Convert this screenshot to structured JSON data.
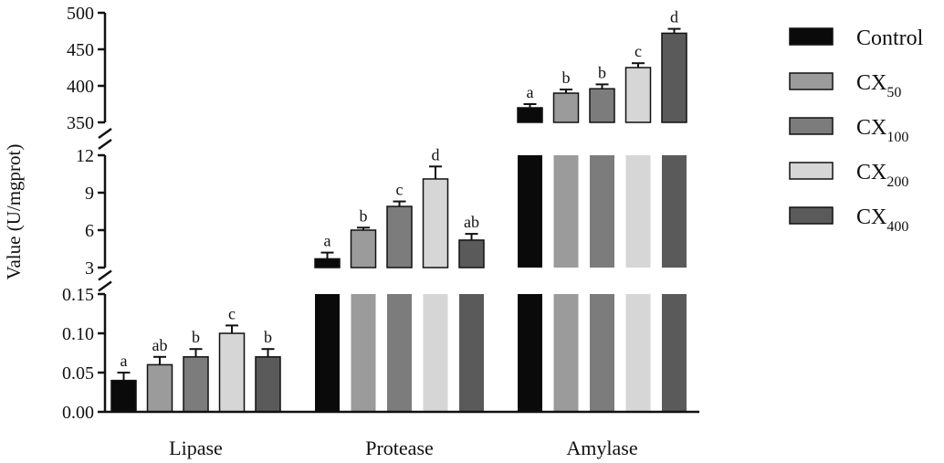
{
  "chart_data": {
    "type": "bar",
    "ylabel": "Value (U/mgprot)",
    "categories": [
      "Lipase",
      "Protease",
      "Amylase"
    ],
    "series": [
      {
        "name": "Control",
        "sub": "",
        "color": "#0a0a0a",
        "values": [
          0.04,
          3.7,
          370
        ],
        "errors": [
          0.01,
          0.5,
          5
        ],
        "sig": [
          "a",
          "a",
          "a"
        ]
      },
      {
        "name": "CX",
        "sub": "50",
        "color": "#9b9b9b",
        "values": [
          0.06,
          6.0,
          390
        ],
        "errors": [
          0.01,
          0.2,
          5
        ],
        "sig": [
          "ab",
          "b",
          "b"
        ]
      },
      {
        "name": "CX",
        "sub": "100",
        "color": "#7c7c7c",
        "values": [
          0.07,
          7.9,
          396
        ],
        "errors": [
          0.01,
          0.4,
          6
        ],
        "sig": [
          "b",
          "c",
          "b"
        ]
      },
      {
        "name": "CX",
        "sub": "200",
        "color": "#d6d6d6",
        "values": [
          0.1,
          10.1,
          425
        ],
        "errors": [
          0.01,
          1.0,
          6
        ],
        "sig": [
          "c",
          "d",
          "c"
        ]
      },
      {
        "name": "CX",
        "sub": "400",
        "color": "#5a5a5a",
        "values": [
          0.07,
          5.2,
          472
        ],
        "errors": [
          0.01,
          0.5,
          6
        ],
        "sig": [
          "b",
          "ab",
          "d"
        ]
      }
    ],
    "segments": [
      {
        "name": "lower",
        "range": [
          0,
          0.15
        ],
        "ticks": [
          "0.00",
          "0.05",
          "0.10",
          "0.15"
        ],
        "tick_values": [
          0,
          0.05,
          0.1,
          0.15
        ]
      },
      {
        "name": "middle",
        "range": [
          3,
          12
        ],
        "ticks": [
          "3",
          "6",
          "9",
          "12"
        ],
        "tick_values": [
          3,
          6,
          9,
          12
        ]
      },
      {
        "name": "upper",
        "range": [
          350,
          500
        ],
        "ticks": [
          "350",
          "400",
          "450",
          "500"
        ],
        "tick_values": [
          350,
          400,
          450,
          500
        ]
      }
    ],
    "legend_position": "right",
    "grid": false
  }
}
